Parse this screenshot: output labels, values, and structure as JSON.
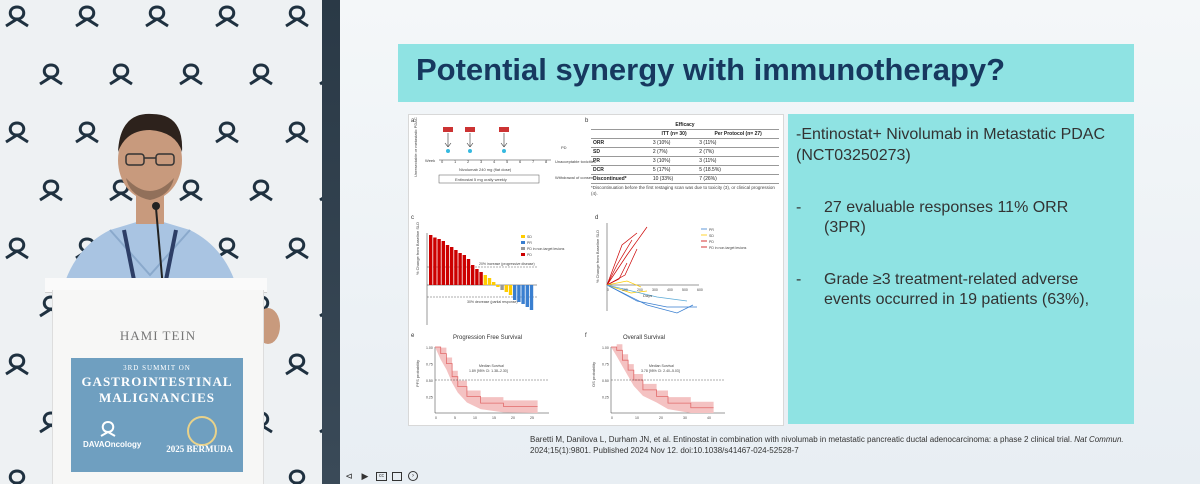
{
  "window": {
    "title": "Potential synergy with immunotherapy? — conference video"
  },
  "podium": {
    "brand": "HAMI   TEIN",
    "sign_line1": "3RD SUMMIT ON",
    "sign_line2": "GASTROINTESTINAL",
    "sign_line3": "MALIGNANCIES",
    "sign_left_logo": "DAVAOncology",
    "sign_right_logo": "2025 BERMUDA"
  },
  "slide": {
    "title": "Potential synergy with immunotherapy?",
    "intro": "-Entinostat+ Nivolumab in Metastatic PDAC (NCT03250273)",
    "bullets": [
      {
        "dash": "-",
        "text": "27 evaluable responses  11% ORR (3PR)"
      },
      {
        "dash": "-",
        "text": "Grade ≥3 treatment-related adverse events occurred in 19 patients (63%),"
      }
    ],
    "citation_a": "Baretti M, Danilova L, Durham JN, et al. Entinostat in combination with nivolumab in metastatic pancreatic ductal adenocarcinoma: a phase 2 clinical trial. ",
    "citation_journal": "Nat Commun.",
    "citation_b": "2024;15(1):9801. Published 2024 Nov 12. doi:10.1038/s41467-024-52528-7"
  },
  "figure": {
    "panel_a_label": "a",
    "panel_a_week_prefix": "Week",
    "panel_a_weeks": [
      "0",
      "1",
      "2",
      "3",
      "4",
      "5",
      "6",
      "7",
      "8"
    ],
    "panel_a_side": "Unresectable or metastatic PDAC",
    "panel_a_dose": "Nivolumab 240 mg (flat dose)",
    "panel_a_regimen": "Entinostat 5 mg orally weekly",
    "panel_a_pd": "PD",
    "panel_a_tox": "Unacceptable toxicities",
    "panel_a_withdraw": "Withdrawal of consent",
    "panel_b_label": "b",
    "efficacy": {
      "title": "Efficacy",
      "headers": [
        "",
        "ITT (n= 30)",
        "Per Protocol (n= 27)"
      ],
      "rows": [
        [
          "ORR",
          "3 (10%)",
          "3 (11%)"
        ],
        [
          "SD",
          "2 (7%)",
          "2 (7%)"
        ],
        [
          "PR",
          "3 (10%)",
          "3 (11%)"
        ],
        [
          "DCR",
          "5 (17%)",
          "5 (18.5%)"
        ],
        [
          "Discontinued*",
          "10 (33%)",
          "7 (26%)"
        ]
      ],
      "footnote": "*Discontinuation before the first restaging scan was due to toxicity (3), or clinical progression (4)."
    },
    "panel_c_label": "c",
    "panel_c_ylabel": "% Change from Baseline SLD",
    "panel_c_legend": [
      "SD",
      "PR",
      "PD in non-target lesions",
      "PD"
    ],
    "panel_c_annot1": "20% increase (progressive disease)",
    "panel_c_annot2": "30% decrease (partial response)",
    "panel_d_label": "d",
    "panel_d_ylabel": "% Change from Baseline SLD",
    "panel_d_legend": [
      "PR",
      "SD",
      "PD",
      "PD in non-target lesions"
    ],
    "panel_d_xlabel": "Days",
    "panel_d_ticks": [
      "0",
      "100",
      "200",
      "300",
      "400",
      "500",
      "600"
    ],
    "panel_e_label": "e",
    "panel_e_title": "Progression Free Survival",
    "panel_e_ylabel": "PFS probability",
    "panel_e_median": "Median Survival",
    "panel_e_value": "1.89 [95% CI: 1.38–2.30]",
    "panel_e_yticks": [
      "1.00",
      "0.75",
      "0.50",
      "0.25"
    ],
    "panel_e_xticks": [
      "0",
      "5",
      "10",
      "15",
      "20",
      "25"
    ],
    "panel_f_label": "f",
    "panel_f_title": "Overall Survival",
    "panel_f_ylabel": "OS probability",
    "panel_f_median": "Median Survival",
    "panel_f_value": "3.78 [95% CI: 2.40–5.03]",
    "panel_f_yticks": [
      "1.00",
      "0.75",
      "0.50",
      "0.25"
    ],
    "panel_f_xticks": [
      "0",
      "10",
      "20",
      "30",
      "40"
    ]
  },
  "player": {
    "controls": [
      "prev-icon",
      "play-icon",
      "captions-icon",
      "copy-icon",
      "next-icon"
    ]
  }
}
